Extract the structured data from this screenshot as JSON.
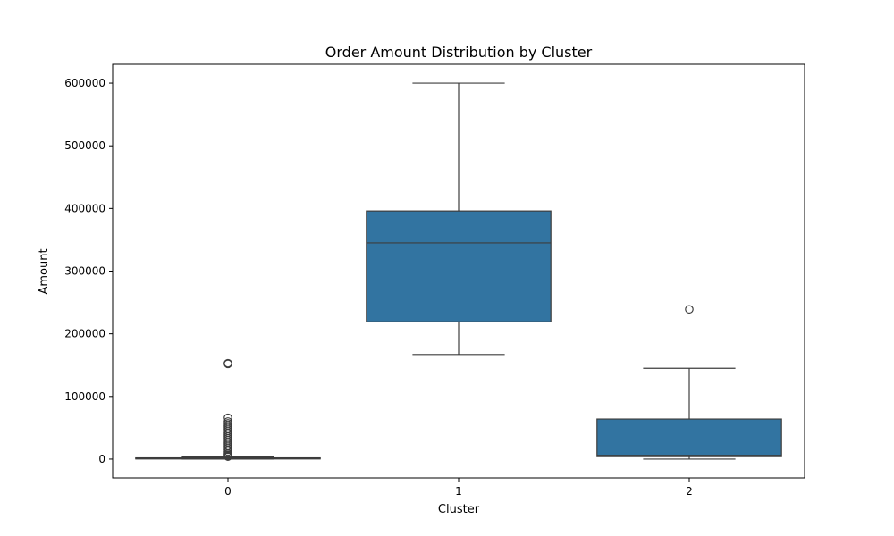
{
  "chart_data": {
    "type": "box",
    "title": "Order Amount Distribution by Cluster",
    "xlabel": "Cluster",
    "ylabel": "Amount",
    "categories": [
      "0",
      "1",
      "2"
    ],
    "ylim": [
      -30000,
      630000
    ],
    "yticks": [
      0,
      100000,
      200000,
      300000,
      400000,
      500000,
      600000
    ],
    "ytick_labels": [
      "0",
      "100000",
      "200000",
      "300000",
      "400000",
      "500000",
      "600000"
    ],
    "grid": false,
    "legend": "none",
    "box_color": "#3274a1",
    "edge_color": "#3d3d3d",
    "boxes": [
      {
        "category": "0",
        "whisker_low": 0,
        "q1": 300,
        "median": 700,
        "q3": 2000,
        "whisker_high": 3500,
        "outliers": [
          152000,
          153000,
          66000,
          60000,
          57000,
          54000,
          51000,
          48000,
          45000,
          42000,
          39000,
          36000,
          33000,
          30000,
          27000,
          24000,
          21000,
          18000,
          15000,
          12000,
          9000,
          7000,
          5000,
          4000
        ]
      },
      {
        "category": "1",
        "whisker_low": 167000,
        "q1": 219000,
        "median": 345000,
        "q3": 396000,
        "whisker_high": 600000,
        "outliers": []
      },
      {
        "category": "2",
        "whisker_low": 0,
        "q1": 4000,
        "median": 6000,
        "q3": 64000,
        "whisker_high": 145000,
        "outliers": [
          239000
        ]
      }
    ]
  }
}
